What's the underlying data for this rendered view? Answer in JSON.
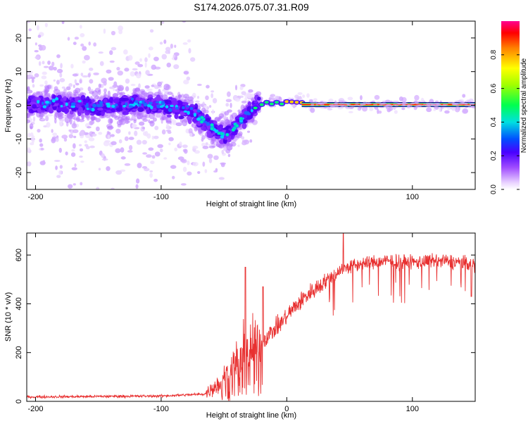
{
  "title": "S174.2026.075.07.31.R09",
  "colors": {
    "signal": "#e83030",
    "axis": "#000000",
    "background": "#ffffff"
  },
  "chart_data": [
    {
      "type": "heatmap",
      "id": "spectrogram",
      "xlabel": "Height of straight line (km)",
      "ylabel": "Frequency (Hz)",
      "xlim": [
        -207,
        150
      ],
      "ylim": [
        -25,
        25
      ],
      "x_ticks": [
        -200,
        -100,
        0,
        100
      ],
      "x_tick_labels": [
        "-200",
        "-100",
        "0",
        "100"
      ],
      "y_ticks": [
        -20,
        -10,
        0,
        10,
        20
      ],
      "y_tick_labels": [
        "-20",
        "-10",
        "0",
        "10",
        "20"
      ],
      "ridge": [
        {
          "x": -207,
          "f": 0.0
        },
        {
          "x": -180,
          "f": 0.5
        },
        {
          "x": -150,
          "f": -0.5
        },
        {
          "x": -120,
          "f": 0.5
        },
        {
          "x": -90,
          "f": -0.5
        },
        {
          "x": -75,
          "f": -2
        },
        {
          "x": -65,
          "f": -5
        },
        {
          "x": -55,
          "f": -8
        },
        {
          "x": -48,
          "f": -9
        },
        {
          "x": -40,
          "f": -6
        },
        {
          "x": -33,
          "f": -3
        },
        {
          "x": -28,
          "f": -1
        },
        {
          "x": -20,
          "f": 0.5
        },
        {
          "x": -10,
          "f": 0.8
        },
        {
          "x": 0,
          "f": 1.0
        },
        {
          "x": 12,
          "f": 0.8
        },
        {
          "x": 20,
          "f": 0.3
        },
        {
          "x": 150,
          "f": 0.2
        }
      ],
      "colorbar": {
        "label": "Normalized spectral amplitude",
        "range": [
          0.0,
          1.0
        ],
        "ticks": [
          0.0,
          0.2,
          0.4,
          0.6,
          0.8
        ],
        "tick_labels": [
          "0.0",
          "0.2",
          "0.4",
          "0.6",
          "0.8"
        ]
      }
    },
    {
      "type": "line",
      "id": "snr",
      "xlabel": "Height of straight line (km)",
      "ylabel": "SNR (10 * v/v)",
      "xlim": [
        -207,
        150
      ],
      "ylim": [
        0,
        690
      ],
      "x_ticks": [
        -200,
        -100,
        0,
        100
      ],
      "x_tick_labels": [
        "-200",
        "-100",
        "0",
        "100"
      ],
      "y_ticks": [
        0,
        200,
        400,
        600
      ],
      "y_tick_labels": [
        "0",
        "200",
        "400",
        "600"
      ],
      "trend": [
        {
          "x": -207,
          "y": 18
        },
        {
          "x": -100,
          "y": 22
        },
        {
          "x": -65,
          "y": 30
        },
        {
          "x": -55,
          "y": 70
        },
        {
          "x": -45,
          "y": 130
        },
        {
          "x": -35,
          "y": 190
        },
        {
          "x": -25,
          "y": 220
        },
        {
          "x": -15,
          "y": 270
        },
        {
          "x": -5,
          "y": 320
        },
        {
          "x": 5,
          "y": 380
        },
        {
          "x": 15,
          "y": 430
        },
        {
          "x": 25,
          "y": 470
        },
        {
          "x": 35,
          "y": 510
        },
        {
          "x": 45,
          "y": 545
        },
        {
          "x": 60,
          "y": 565
        },
        {
          "x": 80,
          "y": 575
        },
        {
          "x": 100,
          "y": 570
        },
        {
          "x": 120,
          "y": 575
        },
        {
          "x": 140,
          "y": 570
        },
        {
          "x": 150,
          "y": 560
        }
      ],
      "peaks": [
        {
          "x": -33,
          "y": 550
        },
        {
          "x": -19,
          "y": 470
        },
        {
          "x": 45,
          "y": 690
        },
        {
          "x": 147,
          "y": 430
        }
      ]
    }
  ]
}
